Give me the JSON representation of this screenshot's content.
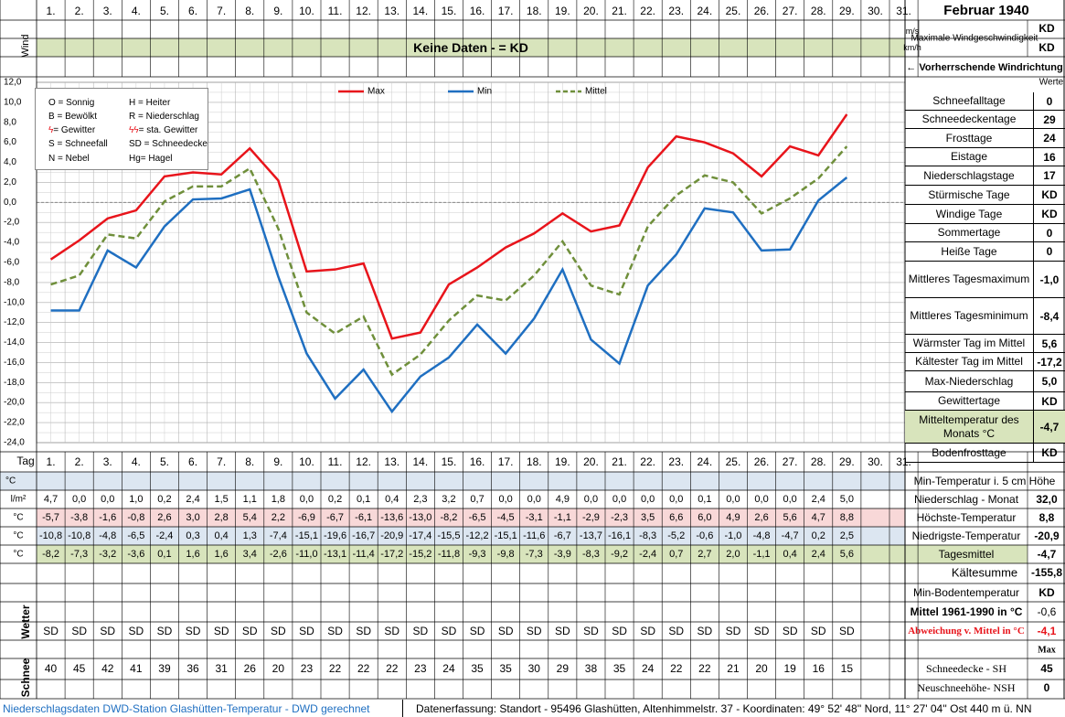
{
  "title": "Februar 1940",
  "days": [
    "1.",
    "2.",
    "3.",
    "4.",
    "5.",
    "6.",
    "7.",
    "8.",
    "9.",
    "10.",
    "11.",
    "12.",
    "13.",
    "14.",
    "15.",
    "16.",
    "17.",
    "18.",
    "19.",
    "20.",
    "21.",
    "22.",
    "23.",
    "24.",
    "25.",
    "26.",
    "27.",
    "28.",
    "29.",
    "30.",
    "31."
  ],
  "wind": {
    "label": "Wind",
    "unit_ms": "m/s",
    "unit_kmh": "km/h",
    "max_label": "Maximale Windgeschwindigkeit",
    "max_ms": "KD",
    "max_kmh": "KD",
    "no_data": "Keine Daten -  = KD",
    "prevailing": "← Vorherrschende Windrichtung"
  },
  "tag_label": "Tag",
  "weather_label": "Wetter",
  "snow_label": "Schnee",
  "werte_label": "Werte",
  "legend_codes": [
    [
      "O = Sonnig",
      "H = Heiter"
    ],
    [
      "B = Bewölkt",
      "R = Niederschlag"
    ],
    [
      "= Gewitter",
      "= sta. Gewitter"
    ],
    [
      "S = Schneefall",
      "SD = Schneedecke"
    ],
    [
      "N = Nebel",
      "Hg= Hagel"
    ]
  ],
  "stats": [
    {
      "label": "Schneefalltage",
      "value": "0"
    },
    {
      "label": "Schneedeckentage",
      "value": "29"
    },
    {
      "label": "Frosttage",
      "value": "24"
    },
    {
      "label": "Eistage",
      "value": "16"
    },
    {
      "label": "Niederschlagstage",
      "value": "17"
    },
    {
      "label": "Stürmische Tage",
      "value": "KD"
    },
    {
      "label": "Windige Tage",
      "value": "KD"
    },
    {
      "label": "Sommertage",
      "value": "0"
    },
    {
      "label": "Heiße Tage",
      "value": "0"
    },
    {
      "label": "Mittleres Tagesmaximum",
      "value": "-1,0"
    },
    {
      "label": "Mittleres Tagesminimum",
      "value": "-8,4"
    },
    {
      "label": "Wärmster Tag im Mittel",
      "value": "5,6"
    },
    {
      "label": "Kältester Tag im Mittel",
      "value": "-17,2"
    },
    {
      "label": "Max-Niederschlag",
      "value": "5,0"
    },
    {
      "label": "Gewittertage",
      "value": "KD"
    },
    {
      "label": "Mitteltemperatur des Monats °C",
      "value": "-4,7"
    },
    {
      "label": "Bodenfrosttage",
      "value": "KD"
    }
  ],
  "table": {
    "min5_label": "Min-Temperatur i. 5 cm Höhe",
    "rows": [
      {
        "unit": "l/m²",
        "label": "Niederschlag - Monat",
        "total": "32,0",
        "values": [
          "4,7",
          "0,0",
          "0,0",
          "1,0",
          "0,2",
          "2,4",
          "1,5",
          "1,1",
          "1,8",
          "0,0",
          "0,2",
          "0,1",
          "0,4",
          "2,3",
          "3,2",
          "0,7",
          "0,0",
          "0,0",
          "4,9",
          "0,0",
          "0,0",
          "0,0",
          "0,0",
          "0,1",
          "0,0",
          "0,0",
          "0,0",
          "2,4",
          "5,0",
          "",
          ""
        ]
      },
      {
        "unit": "°C",
        "label": "Höchste-Temperatur",
        "total": "8,8",
        "values": [
          "-5,7",
          "-3,8",
          "-1,6",
          "-0,8",
          "2,6",
          "3,0",
          "2,8",
          "5,4",
          "2,2",
          "-6,9",
          "-6,7",
          "-6,1",
          "-13,6",
          "-13,0",
          "-8,2",
          "-6,5",
          "-4,5",
          "-3,1",
          "-1,1",
          "-2,9",
          "-2,3",
          "3,5",
          "6,6",
          "6,0",
          "4,9",
          "2,6",
          "5,6",
          "4,7",
          "8,8",
          "",
          ""
        ]
      },
      {
        "unit": "°C",
        "label": "Niedrigste-Temperatur",
        "total": "-20,9",
        "values": [
          "-10,8",
          "-10,8",
          "-4,8",
          "-6,5",
          "-2,4",
          "0,3",
          "0,4",
          "1,3",
          "-7,4",
          "-15,1",
          "-19,6",
          "-16,7",
          "-20,9",
          "-17,4",
          "-15,5",
          "-12,2",
          "-15,1",
          "-11,6",
          "-6,7",
          "-13,7",
          "-16,1",
          "-8,3",
          "-5,2",
          "-0,6",
          "-1,0",
          "-4,8",
          "-4,7",
          "0,2",
          "2,5",
          "",
          ""
        ]
      },
      {
        "unit": "°C",
        "label": "Tagesmittel",
        "total": "-4,7",
        "values": [
          "-8,2",
          "-7,3",
          "-3,2",
          "-3,6",
          "0,1",
          "1,6",
          "1,6",
          "3,4",
          "-2,6",
          "-11,0",
          "-13,1",
          "-11,4",
          "-17,2",
          "-15,2",
          "-11,8",
          "-9,3",
          "-9,8",
          "-7,3",
          "-3,9",
          "-8,3",
          "-9,2",
          "-2,4",
          "0,7",
          "2,7",
          "2,0",
          "-1,1",
          "0,4",
          "2,4",
          "5,6",
          "",
          ""
        ]
      }
    ],
    "kaeltesumme_label": "Kältesumme",
    "kaeltesumme": "-155,8",
    "min_boden_label": "Min-Bodentemperatur",
    "min_boden": "KD",
    "mittel_label": "Mittel 1961-1990 in °C",
    "mittel": "-0,6",
    "abweichung_label": "Abweichung v. Mittel in °C",
    "abweichung": "-4,1",
    "max_label": "Max",
    "weather": [
      "SD",
      "SD",
      "SD",
      "SD",
      "SD",
      "SD",
      "SD",
      "SD",
      "SD",
      "SD",
      "SD",
      "SD",
      "SD",
      "SD",
      "SD",
      "SD",
      "SD",
      "SD",
      "SD",
      "SD",
      "SD",
      "SD",
      "SD",
      "SD",
      "SD",
      "SD",
      "SD",
      "SD",
      "SD",
      "",
      ""
    ],
    "snow": [
      "40",
      "45",
      "42",
      "41",
      "39",
      "36",
      "31",
      "26",
      "20",
      "23",
      "22",
      "22",
      "22",
      "23",
      "24",
      "35",
      "35",
      "30",
      "29",
      "38",
      "35",
      "24",
      "22",
      "22",
      "21",
      "20",
      "19",
      "16",
      "15",
      "",
      ""
    ],
    "snow_sh_label": "Schneedecke -  SH",
    "snow_sh": "45",
    "snow_nsh_label": "Neuschneehöhe-  NSH",
    "snow_nsh": "0"
  },
  "footer": {
    "left": "Niederschlagsdaten DWD-Station Glashütten-Temperatur -  DWD gerechnet",
    "right": "Datenerfassung: Standort -  95496 Glashütten, Altenhimmelstr. 37 - Koordinaten: 49° 52' 48'' Nord,   11° 27' 04'' Ost   440 m ü. NN"
  },
  "colors": {
    "max": "#e8141b",
    "min": "#1f6fc1",
    "mittel": "#6f8f3b",
    "wind_band": "#d8e4bc",
    "pink": "#f8d8d8",
    "blue": "#dce6f1",
    "green": "#d8e4bc"
  },
  "chart_data": {
    "type": "line",
    "x": [
      1,
      2,
      3,
      4,
      5,
      6,
      7,
      8,
      9,
      10,
      11,
      12,
      13,
      14,
      15,
      16,
      17,
      18,
      19,
      20,
      21,
      22,
      23,
      24,
      25,
      26,
      27,
      28,
      29
    ],
    "ylim": [
      -24,
      12
    ],
    "yticks": [
      "12,0",
      "10,0",
      "8,0",
      "6,0",
      "4,0",
      "2,0",
      "0,0",
      "-2,0",
      "-4,0",
      "-6,0",
      "-8,0",
      "-10,0",
      "-12,0",
      "-14,0",
      "-16,0",
      "-18,0",
      "-20,0",
      "-22,0",
      "-24,0"
    ],
    "series": [
      {
        "name": "Max",
        "values": [
          -5.7,
          -3.8,
          -1.6,
          -0.8,
          2.6,
          3.0,
          2.8,
          5.4,
          2.2,
          -6.9,
          -6.7,
          -6.1,
          -13.6,
          -13.0,
          -8.2,
          -6.5,
          -4.5,
          -3.1,
          -1.1,
          -2.9,
          -2.3,
          3.5,
          6.6,
          6.0,
          4.9,
          2.6,
          5.6,
          4.7,
          8.8
        ]
      },
      {
        "name": "Min",
        "values": [
          -10.8,
          -10.8,
          -4.8,
          -6.5,
          -2.4,
          0.3,
          0.4,
          1.3,
          -7.4,
          -15.1,
          -19.6,
          -16.7,
          -20.9,
          -17.4,
          -15.5,
          -12.2,
          -15.1,
          -11.6,
          -6.7,
          -13.7,
          -16.1,
          -8.3,
          -5.2,
          -0.6,
          -1.0,
          -4.8,
          -4.7,
          0.2,
          2.5
        ]
      },
      {
        "name": "Mittel",
        "values": [
          -8.2,
          -7.3,
          -3.2,
          -3.6,
          0.1,
          1.6,
          1.6,
          3.4,
          -2.6,
          -11.0,
          -13.1,
          -11.4,
          -17.2,
          -15.2,
          -11.8,
          -9.3,
          -9.8,
          -7.3,
          -3.9,
          -8.3,
          -9.2,
          -2.4,
          0.7,
          2.7,
          2.0,
          -1.1,
          0.4,
          2.4,
          5.6
        ]
      }
    ],
    "grid": true,
    "legend": "top"
  }
}
